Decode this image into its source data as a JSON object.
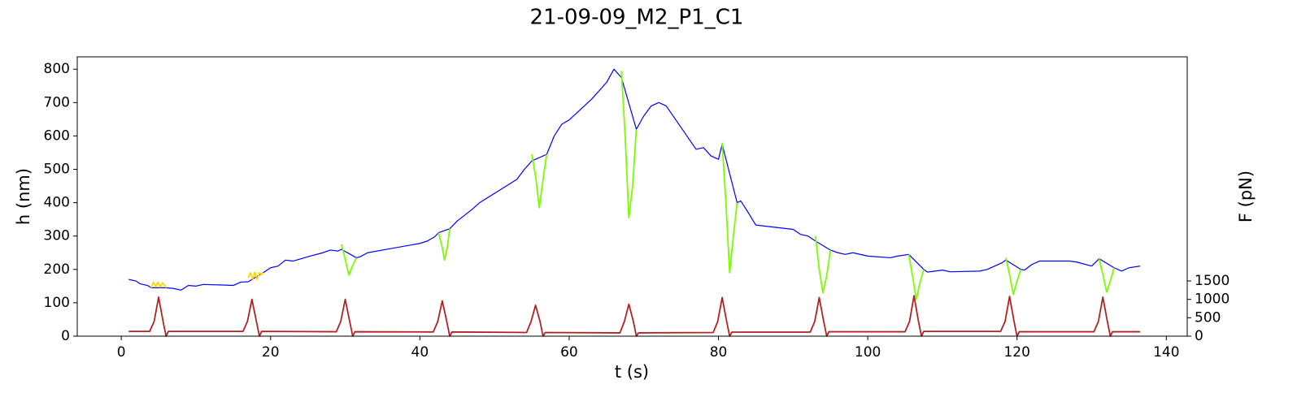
{
  "chart_data": {
    "type": "line",
    "title": "21-09-09_M2_P1_C1",
    "xlabel": "t (s)",
    "ylabel": "h (nm)",
    "y2label": "F (pN)",
    "xlim": [
      -5.9,
      142.8
    ],
    "xticks": [
      0,
      20,
      40,
      60,
      80,
      100,
      120,
      140
    ],
    "ylim": [
      0,
      837
    ],
    "yticks": [
      0,
      100,
      200,
      300,
      400,
      500,
      600,
      700,
      800
    ],
    "y2lim": [
      0,
      7590
    ],
    "y2ticks": [
      0,
      500,
      1000,
      1500
    ],
    "series": [
      {
        "color": "#0000ff",
        "axis": "y",
        "x": [
          1,
          2,
          2.5,
          3.5,
          4,
          6,
          7,
          8,
          9,
          10,
          11,
          14,
          15,
          16,
          17,
          19,
          20,
          21,
          22,
          23,
          25,
          27,
          28,
          29,
          29.5,
          31.5,
          32,
          33,
          35,
          40,
          41,
          42,
          42.5,
          44,
          45,
          47,
          48,
          53,
          54,
          55,
          57,
          58,
          59,
          60,
          63,
          65,
          66,
          67,
          69,
          70,
          71,
          72,
          73,
          77,
          78,
          79,
          80,
          80.5,
          82.5,
          83,
          84,
          85,
          90,
          91,
          92,
          93,
          95,
          96,
          97,
          98,
          100,
          103,
          104,
          105.5,
          107.5,
          108,
          109,
          110,
          111,
          115,
          116,
          117,
          118,
          118.5,
          120.5,
          121,
          122,
          123,
          127,
          128,
          130,
          131,
          133,
          134,
          135,
          136.5
        ],
        "values": [
          170,
          165,
          157,
          152,
          145,
          145,
          143,
          138,
          152,
          150,
          155,
          153,
          152,
          162,
          163,
          190,
          205,
          210,
          228,
          225,
          238,
          250,
          258,
          255,
          260,
          235,
          238,
          250,
          258,
          278,
          285,
          298,
          310,
          322,
          345,
          380,
          400,
          470,
          500,
          525,
          545,
          600,
          635,
          648,
          710,
          760,
          800,
          775,
          620,
          660,
          690,
          700,
          690,
          560,
          565,
          540,
          530,
          575,
          400,
          405,
          370,
          333,
          320,
          305,
          300,
          285,
          258,
          250,
          245,
          250,
          240,
          235,
          240,
          245,
          200,
          192,
          195,
          198,
          193,
          195,
          200,
          210,
          220,
          228,
          200,
          198,
          215,
          225,
          225,
          222,
          210,
          232,
          205,
          195,
          205,
          210
        ]
      },
      {
        "color": "#7cfc00",
        "axis": "y",
        "x": [
          29.5,
          30,
          30.5,
          31,
          31.5,
          null,
          42.5,
          43,
          43.3,
          43.7,
          44,
          null,
          55,
          55.5,
          56,
          56.5,
          57,
          null,
          67,
          67.5,
          68,
          68.5,
          69,
          null,
          80.5,
          81,
          81.5,
          82,
          82.5,
          null,
          93,
          93.5,
          94,
          94.5,
          95,
          null,
          105.5,
          106,
          106.5,
          107,
          107.5,
          null,
          118.5,
          119,
          119.5,
          120,
          120.5,
          null,
          131,
          131.5,
          132,
          132.5,
          133
        ],
        "values": [
          275,
          230,
          183,
          212,
          235,
          null,
          310,
          265,
          228,
          270,
          322,
          null,
          545,
          480,
          385,
          470,
          545,
          null,
          795,
          600,
          355,
          450,
          620,
          null,
          580,
          400,
          190,
          300,
          400,
          null,
          300,
          200,
          130,
          180,
          258,
          null,
          245,
          180,
          110,
          160,
          200,
          null,
          235,
          185,
          125,
          165,
          200,
          null,
          232,
          185,
          132,
          165,
          205
        ]
      },
      {
        "color": "#ffd700",
        "axis": "y",
        "x": [
          4,
          4.3,
          4.6,
          4.9,
          5.2,
          5.5,
          5.8,
          6,
          null,
          17,
          17.3,
          17.6,
          17.9,
          18.2,
          18.5,
          18.8,
          19
        ],
        "values": [
          145,
          162,
          148,
          162,
          147,
          160,
          152,
          145,
          null,
          175,
          190,
          172,
          192,
          170,
          190,
          185,
          190
        ]
      },
      {
        "color": "#b22222",
        "axis": "y2",
        "x": [
          1,
          3.8,
          4.4,
          5,
          5.6,
          6,
          6.3,
          16.3,
          16.9,
          17.5,
          18.1,
          18.5,
          18.8,
          28.8,
          29.4,
          30,
          30.6,
          31,
          31.3,
          41.8,
          42.4,
          43,
          43.6,
          44,
          44.3,
          54.3,
          54.9,
          55.5,
          56.1,
          56.5,
          56.8,
          66.8,
          67.4,
          68,
          68.6,
          69,
          69.3,
          79.3,
          79.9,
          80.5,
          81.1,
          81.5,
          81.8,
          92.3,
          92.9,
          93.5,
          94.1,
          94.5,
          94.8,
          105,
          105.6,
          106.2,
          106.8,
          107.2,
          107.5,
          117.8,
          118.4,
          119,
          119.6,
          120,
          120.3,
          130.3,
          130.9,
          131.5,
          132.1,
          132.5,
          132.8,
          136.5
        ],
        "values": [
          130,
          130,
          400,
          1060,
          400,
          0,
          130,
          130,
          400,
          1000,
          400,
          0,
          130,
          120,
          400,
          1000,
          400,
          0,
          120,
          115,
          400,
          960,
          400,
          0,
          115,
          100,
          400,
          840,
          400,
          0,
          100,
          90,
          400,
          870,
          400,
          0,
          90,
          100,
          400,
          1050,
          400,
          0,
          110,
          110,
          400,
          1050,
          400,
          0,
          120,
          120,
          400,
          1100,
          400,
          0,
          130,
          130,
          400,
          1080,
          400,
          0,
          120,
          120,
          400,
          1060,
          400,
          0,
          120,
          120
        ]
      }
    ]
  }
}
